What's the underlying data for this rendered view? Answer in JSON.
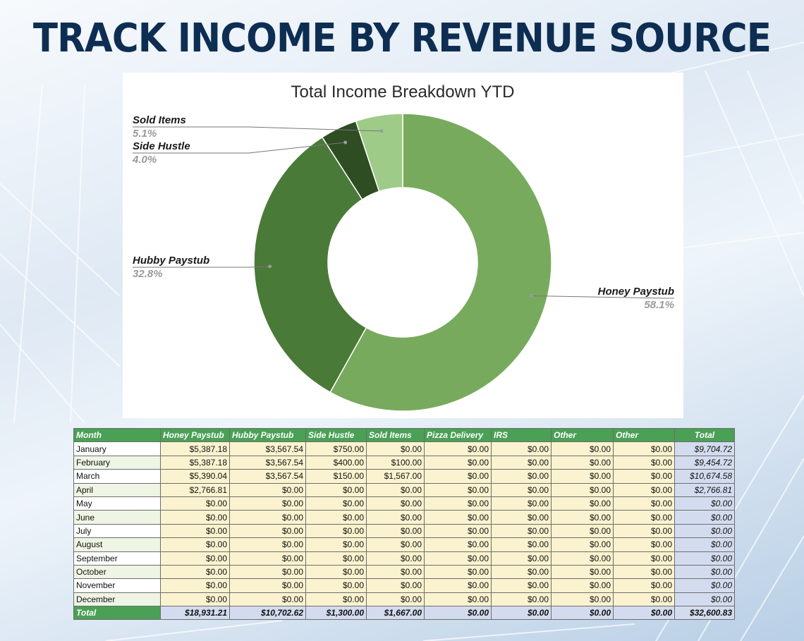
{
  "headline": "TRACK INCOME BY REVENUE SOURCE",
  "colors": {
    "headline": "#0d2e52",
    "header_green": "#4aa055",
    "value_cell": "#fbf3cf",
    "total_cell": "#d3dcef"
  },
  "chart_data": {
    "type": "pie",
    "title": "Total Income Breakdown YTD",
    "donut": true,
    "slices": [
      {
        "name": "Honey Paystub",
        "value": 58.1,
        "label": "58.1%",
        "color": "#78aa5d"
      },
      {
        "name": "Hubby Paystub",
        "value": 32.8,
        "label": "32.8%",
        "color": "#4a7a38"
      },
      {
        "name": "Side Hustle",
        "value": 4.0,
        "label": "4.0%",
        "color": "#2e4d22"
      },
      {
        "name": "Sold Items",
        "value": 5.1,
        "label": "5.1%",
        "color": "#9ecb88"
      }
    ]
  },
  "table": {
    "headers": [
      "Month",
      "Honey Paystub",
      "Hubby Paystub",
      "Side Hustle",
      "Sold Items",
      "Pizza Delivery",
      "IRS",
      "Other",
      "Other",
      "Total"
    ],
    "rows": [
      [
        "January",
        "$5,387.18",
        "$3,567.54",
        "$750.00",
        "$0.00",
        "$0.00",
        "$0.00",
        "$0.00",
        "$0.00",
        "$9,704.72"
      ],
      [
        "February",
        "$5,387.18",
        "$3,567.54",
        "$400.00",
        "$100.00",
        "$0.00",
        "$0.00",
        "$0.00",
        "$0.00",
        "$9,454.72"
      ],
      [
        "March",
        "$5,390.04",
        "$3,567.54",
        "$150.00",
        "$1,567.00",
        "$0.00",
        "$0.00",
        "$0.00",
        "$0.00",
        "$10,674.58"
      ],
      [
        "April",
        "$2,766.81",
        "$0.00",
        "$0.00",
        "$0.00",
        "$0.00",
        "$0.00",
        "$0.00",
        "$0.00",
        "$2,766.81"
      ],
      [
        "May",
        "$0.00",
        "$0.00",
        "$0.00",
        "$0.00",
        "$0.00",
        "$0.00",
        "$0.00",
        "$0.00",
        "$0.00"
      ],
      [
        "June",
        "$0.00",
        "$0.00",
        "$0.00",
        "$0.00",
        "$0.00",
        "$0.00",
        "$0.00",
        "$0.00",
        "$0.00"
      ],
      [
        "July",
        "$0.00",
        "$0.00",
        "$0.00",
        "$0.00",
        "$0.00",
        "$0.00",
        "$0.00",
        "$0.00",
        "$0.00"
      ],
      [
        "August",
        "$0.00",
        "$0.00",
        "$0.00",
        "$0.00",
        "$0.00",
        "$0.00",
        "$0.00",
        "$0.00",
        "$0.00"
      ],
      [
        "September",
        "$0.00",
        "$0.00",
        "$0.00",
        "$0.00",
        "$0.00",
        "$0.00",
        "$0.00",
        "$0.00",
        "$0.00"
      ],
      [
        "October",
        "$0.00",
        "$0.00",
        "$0.00",
        "$0.00",
        "$0.00",
        "$0.00",
        "$0.00",
        "$0.00",
        "$0.00"
      ],
      [
        "November",
        "$0.00",
        "$0.00",
        "$0.00",
        "$0.00",
        "$0.00",
        "$0.00",
        "$0.00",
        "$0.00",
        "$0.00"
      ],
      [
        "December",
        "$0.00",
        "$0.00",
        "$0.00",
        "$0.00",
        "$0.00",
        "$0.00",
        "$0.00",
        "$0.00",
        "$0.00"
      ]
    ],
    "total_row": [
      "Total",
      "$18,931.21",
      "$10,702.62",
      "$1,300.00",
      "$1,667.00",
      "$0.00",
      "$0.00",
      "$0.00",
      "$0.00",
      "$32,600.83"
    ]
  }
}
